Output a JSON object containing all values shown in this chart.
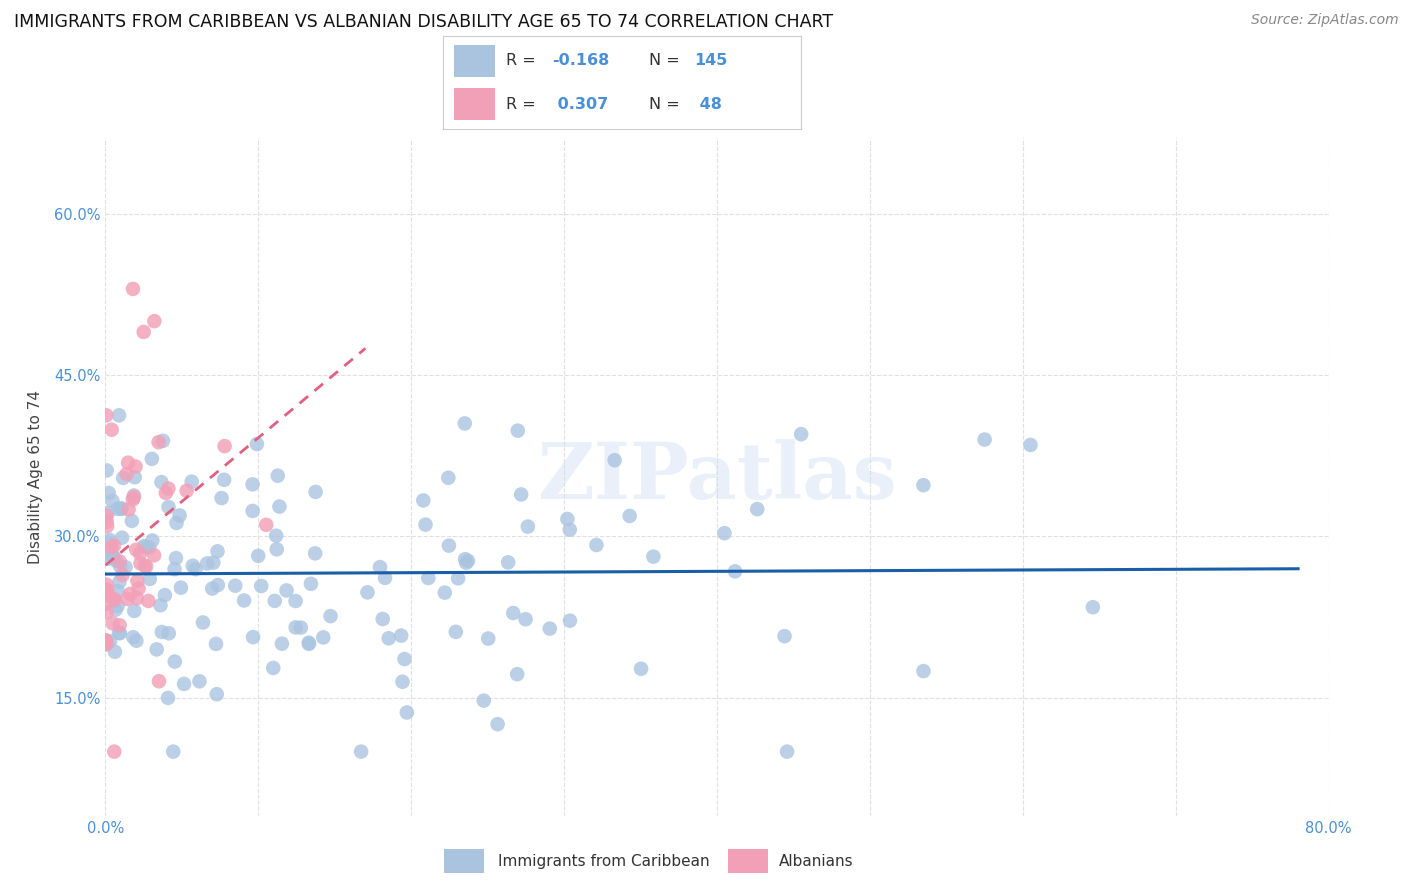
{
  "title": "IMMIGRANTS FROM CARIBBEAN VS ALBANIAN DISABILITY AGE 65 TO 74 CORRELATION CHART",
  "source": "Source: ZipAtlas.com",
  "ylabel": "Disability Age 65 to 74",
  "xlim": [
    0.0,
    0.8
  ],
  "ylim": [
    0.04,
    0.67
  ],
  "y_ticks": [
    0.15,
    0.3,
    0.45,
    0.6
  ],
  "x_tick_positions": [
    0.0,
    0.1,
    0.2,
    0.3,
    0.4,
    0.5,
    0.6,
    0.7,
    0.8
  ],
  "x_tick_labels": [
    "0.0%",
    "",
    "",
    "",
    "",
    "",
    "",
    "",
    "80.0%"
  ],
  "caribbean_R": -0.168,
  "caribbean_N": 145,
  "albanian_R": 0.307,
  "albanian_N": 48,
  "caribbean_color": "#aac4e0",
  "albanian_color": "#f2a0b8",
  "caribbean_line_color": "#1a5ea8",
  "albanian_line_color": "#e06080",
  "watermark": "ZIPatlas",
  "legend_caribbean_label": "Immigrants from Caribbean",
  "legend_albanian_label": "Albanians",
  "background_color": "#ffffff",
  "grid_color": "#e0e0e0",
  "tick_color": "#4a90d9",
  "title_fontsize": 12.5,
  "axis_label_fontsize": 11,
  "tick_fontsize": 10.5,
  "source_fontsize": 10
}
